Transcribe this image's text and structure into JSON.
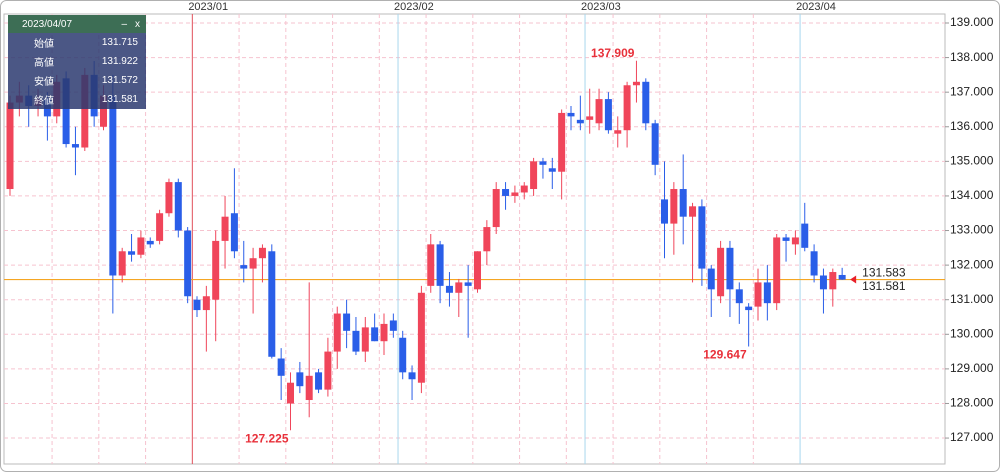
{
  "chart_data": {
    "type": "candlestick",
    "categories": [
      null,
      null,
      null,
      null,
      null,
      null,
      null,
      null,
      null,
      null,
      null,
      null,
      null,
      null,
      null,
      null,
      null,
      null,
      null,
      null,
      "2023/01",
      null,
      null,
      null,
      null,
      null,
      null,
      null,
      null,
      null,
      null,
      null,
      null,
      null,
      null,
      null,
      null,
      null,
      null,
      null,
      null,
      null,
      "2023/02",
      null,
      null,
      null,
      null,
      null,
      null,
      null,
      null,
      null,
      null,
      null,
      null,
      null,
      null,
      null,
      null,
      null,
      null,
      null,
      "2023/03",
      null,
      null,
      null,
      null,
      null,
      null,
      null,
      null,
      null,
      null,
      null,
      null,
      null,
      null,
      null,
      null,
      null,
      null,
      null,
      null,
      null,
      null,
      "2023/04",
      null,
      null,
      null,
      null
    ],
    "divider_colors": [
      "#e0505a",
      "#a8d8ee",
      "#a8d8ee",
      "#a8d8ee"
    ],
    "open": [
      134.2,
      136.7,
      136.9,
      136.6,
      136.8,
      136.3,
      137.4,
      135.5,
      135.4,
      137.5,
      136.0,
      136.9,
      131.7,
      132.4,
      132.3,
      132.7,
      132.7,
      133.5,
      134.4,
      133.0,
      131.0,
      130.7,
      131.0,
      132.7,
      133.5,
      132.0,
      131.9,
      132.2,
      132.4,
      129.3,
      128.0,
      128.9,
      128.1,
      128.9,
      128.4,
      129.5,
      130.6,
      130.1,
      129.5,
      130.2,
      129.8,
      130.4,
      129.9,
      128.9,
      128.6,
      131.4,
      132.6,
      131.4,
      131.2,
      131.5,
      131.3,
      132.4,
      133.1,
      134.2,
      134.0,
      134.1,
      134.2,
      135.0,
      134.8,
      134.7,
      136.4,
      136.2,
      136.2,
      136.1,
      136.8,
      135.8,
      135.9,
      137.2,
      137.3,
      136.1,
      133.9,
      133.2,
      134.2,
      133.4,
      133.7,
      131.9,
      131.1,
      132.5,
      131.3,
      130.8,
      130.8,
      131.5,
      130.9,
      132.8,
      132.6,
      133.2,
      132.4,
      131.7,
      131.3,
      131.715
    ],
    "high": [
      136.9,
      137.3,
      137.2,
      137.1,
      137.0,
      137.5,
      137.6,
      136.0,
      137.7,
      137.9,
      137.2,
      137.5,
      132.5,
      132.9,
      133.0,
      132.8,
      133.6,
      134.5,
      134.5,
      133.1,
      131.1,
      131.4,
      133.0,
      134.0,
      134.8,
      132.7,
      132.5,
      132.6,
      132.6,
      129.6,
      128.9,
      129.2,
      131.5,
      129.0,
      129.9,
      130.8,
      131.0,
      130.5,
      130.5,
      130.6,
      130.6,
      130.6,
      130.1,
      129.1,
      131.4,
      132.9,
      132.7,
      131.8,
      131.6,
      132.0,
      132.4,
      133.3,
      134.4,
      134.4,
      134.3,
      134.4,
      135.1,
      135.1,
      135.1,
      136.5,
      136.6,
      136.9,
      137.1,
      137.1,
      137.0,
      136.3,
      137.3,
      137.909,
      137.4,
      136.2,
      135.0,
      134.4,
      135.2,
      133.8,
      133.9,
      132.0,
      132.7,
      132.7,
      131.5,
      130.9,
      131.9,
      132.0,
      132.9,
      132.9,
      133.0,
      133.8,
      132.6,
      131.9,
      131.9,
      131.922
    ],
    "low": [
      134.0,
      136.3,
      136.0,
      136.3,
      135.6,
      136.1,
      135.4,
      134.6,
      135.3,
      136.0,
      135.9,
      130.6,
      131.5,
      132.1,
      132.2,
      132.5,
      132.6,
      133.4,
      132.8,
      130.9,
      130.5,
      129.5,
      129.8,
      131.9,
      132.2,
      131.5,
      130.6,
      131.5,
      129.3,
      128.1,
      127.225,
      128.3,
      127.6,
      128.3,
      128.2,
      129.0,
      129.6,
      129.4,
      129.2,
      129.8,
      129.4,
      129.9,
      128.7,
      128.1,
      128.3,
      131.2,
      130.9,
      130.8,
      130.5,
      129.9,
      131.2,
      132.0,
      132.9,
      133.6,
      133.8,
      133.9,
      134.0,
      134.5,
      134.2,
      133.9,
      135.9,
      135.9,
      135.8,
      135.9,
      135.8,
      135.4,
      135.4,
      136.7,
      135.9,
      134.6,
      132.2,
      132.3,
      132.6,
      131.5,
      131.4,
      130.5,
      130.9,
      130.5,
      130.3,
      129.647,
      130.4,
      130.4,
      130.7,
      132.1,
      132.3,
      132.4,
      131.5,
      130.6,
      130.8,
      131.572
    ],
    "close": [
      136.7,
      136.9,
      136.6,
      136.8,
      136.3,
      137.3,
      135.5,
      135.4,
      137.5,
      136.3,
      136.9,
      131.7,
      132.4,
      132.3,
      132.8,
      132.6,
      133.5,
      134.4,
      133.0,
      131.1,
      130.7,
      131.1,
      132.7,
      133.4,
      132.4,
      131.9,
      132.2,
      132.5,
      129.35,
      128.8,
      128.6,
      128.5,
      128.8,
      128.4,
      129.5,
      130.6,
      130.1,
      129.5,
      130.2,
      129.8,
      130.3,
      130.1,
      128.9,
      128.7,
      131.2,
      132.6,
      131.4,
      131.2,
      131.5,
      131.4,
      132.4,
      133.1,
      134.2,
      134.0,
      134.1,
      134.3,
      135.0,
      134.9,
      134.7,
      136.4,
      136.3,
      136.1,
      136.3,
      136.8,
      135.9,
      135.9,
      137.2,
      137.3,
      136.1,
      134.9,
      133.2,
      134.2,
      133.4,
      133.7,
      131.9,
      131.3,
      132.5,
      131.3,
      130.9,
      130.7,
      131.5,
      130.9,
      132.8,
      132.7,
      132.8,
      132.5,
      131.7,
      131.3,
      131.8,
      131.581
    ],
    "up_color": "#f0455a",
    "down_color": "#2a5ee8",
    "ylim": [
      126.25,
      139.26
    ],
    "yticks": [
      {
        "value": 127,
        "label": "127.000"
      },
      {
        "value": 128,
        "label": "128.000"
      },
      {
        "value": 129,
        "label": "129.000"
      },
      {
        "value": 130,
        "label": "130.000"
      },
      {
        "value": 131,
        "label": "131.000"
      },
      {
        "value": 132,
        "label": "132.000"
      },
      {
        "value": 133,
        "label": "133.000"
      },
      {
        "value": 134,
        "label": "134.000"
      },
      {
        "value": 135,
        "label": "135.000"
      },
      {
        "value": 136,
        "label": "136.000"
      },
      {
        "value": 137,
        "label": "137.000"
      },
      {
        "value": 138,
        "label": "138.000"
      },
      {
        "value": 139,
        "label": "139.000"
      }
    ],
    "grid": true,
    "annotations": [
      {
        "label": "137.909",
        "value": 137.909,
        "index": 67,
        "position": "above",
        "color": "#e8303a"
      },
      {
        "label": "127.225",
        "value": 127.225,
        "index": 30,
        "position": "below",
        "color": "#e8303a"
      },
      {
        "label": "129.647",
        "value": 129.647,
        "index": 79,
        "position": "below",
        "color": "#e8303a"
      }
    ],
    "price_labels": [
      {
        "label": "131.583",
        "value": 131.583,
        "color": "#e8202a",
        "line_color": "#f5a623"
      },
      {
        "label": "131.581",
        "value": 131.581,
        "color": "#2a5ee8"
      }
    ]
  },
  "info_box": {
    "date": "2023/04/07",
    "minimize": "–",
    "close": "x",
    "rows": [
      {
        "label": "始値",
        "value": 131.715
      },
      {
        "label": "高値",
        "value": 131.922
      },
      {
        "label": "安値",
        "value": 131.572
      },
      {
        "label": "終値",
        "value": 131.581
      }
    ]
  }
}
